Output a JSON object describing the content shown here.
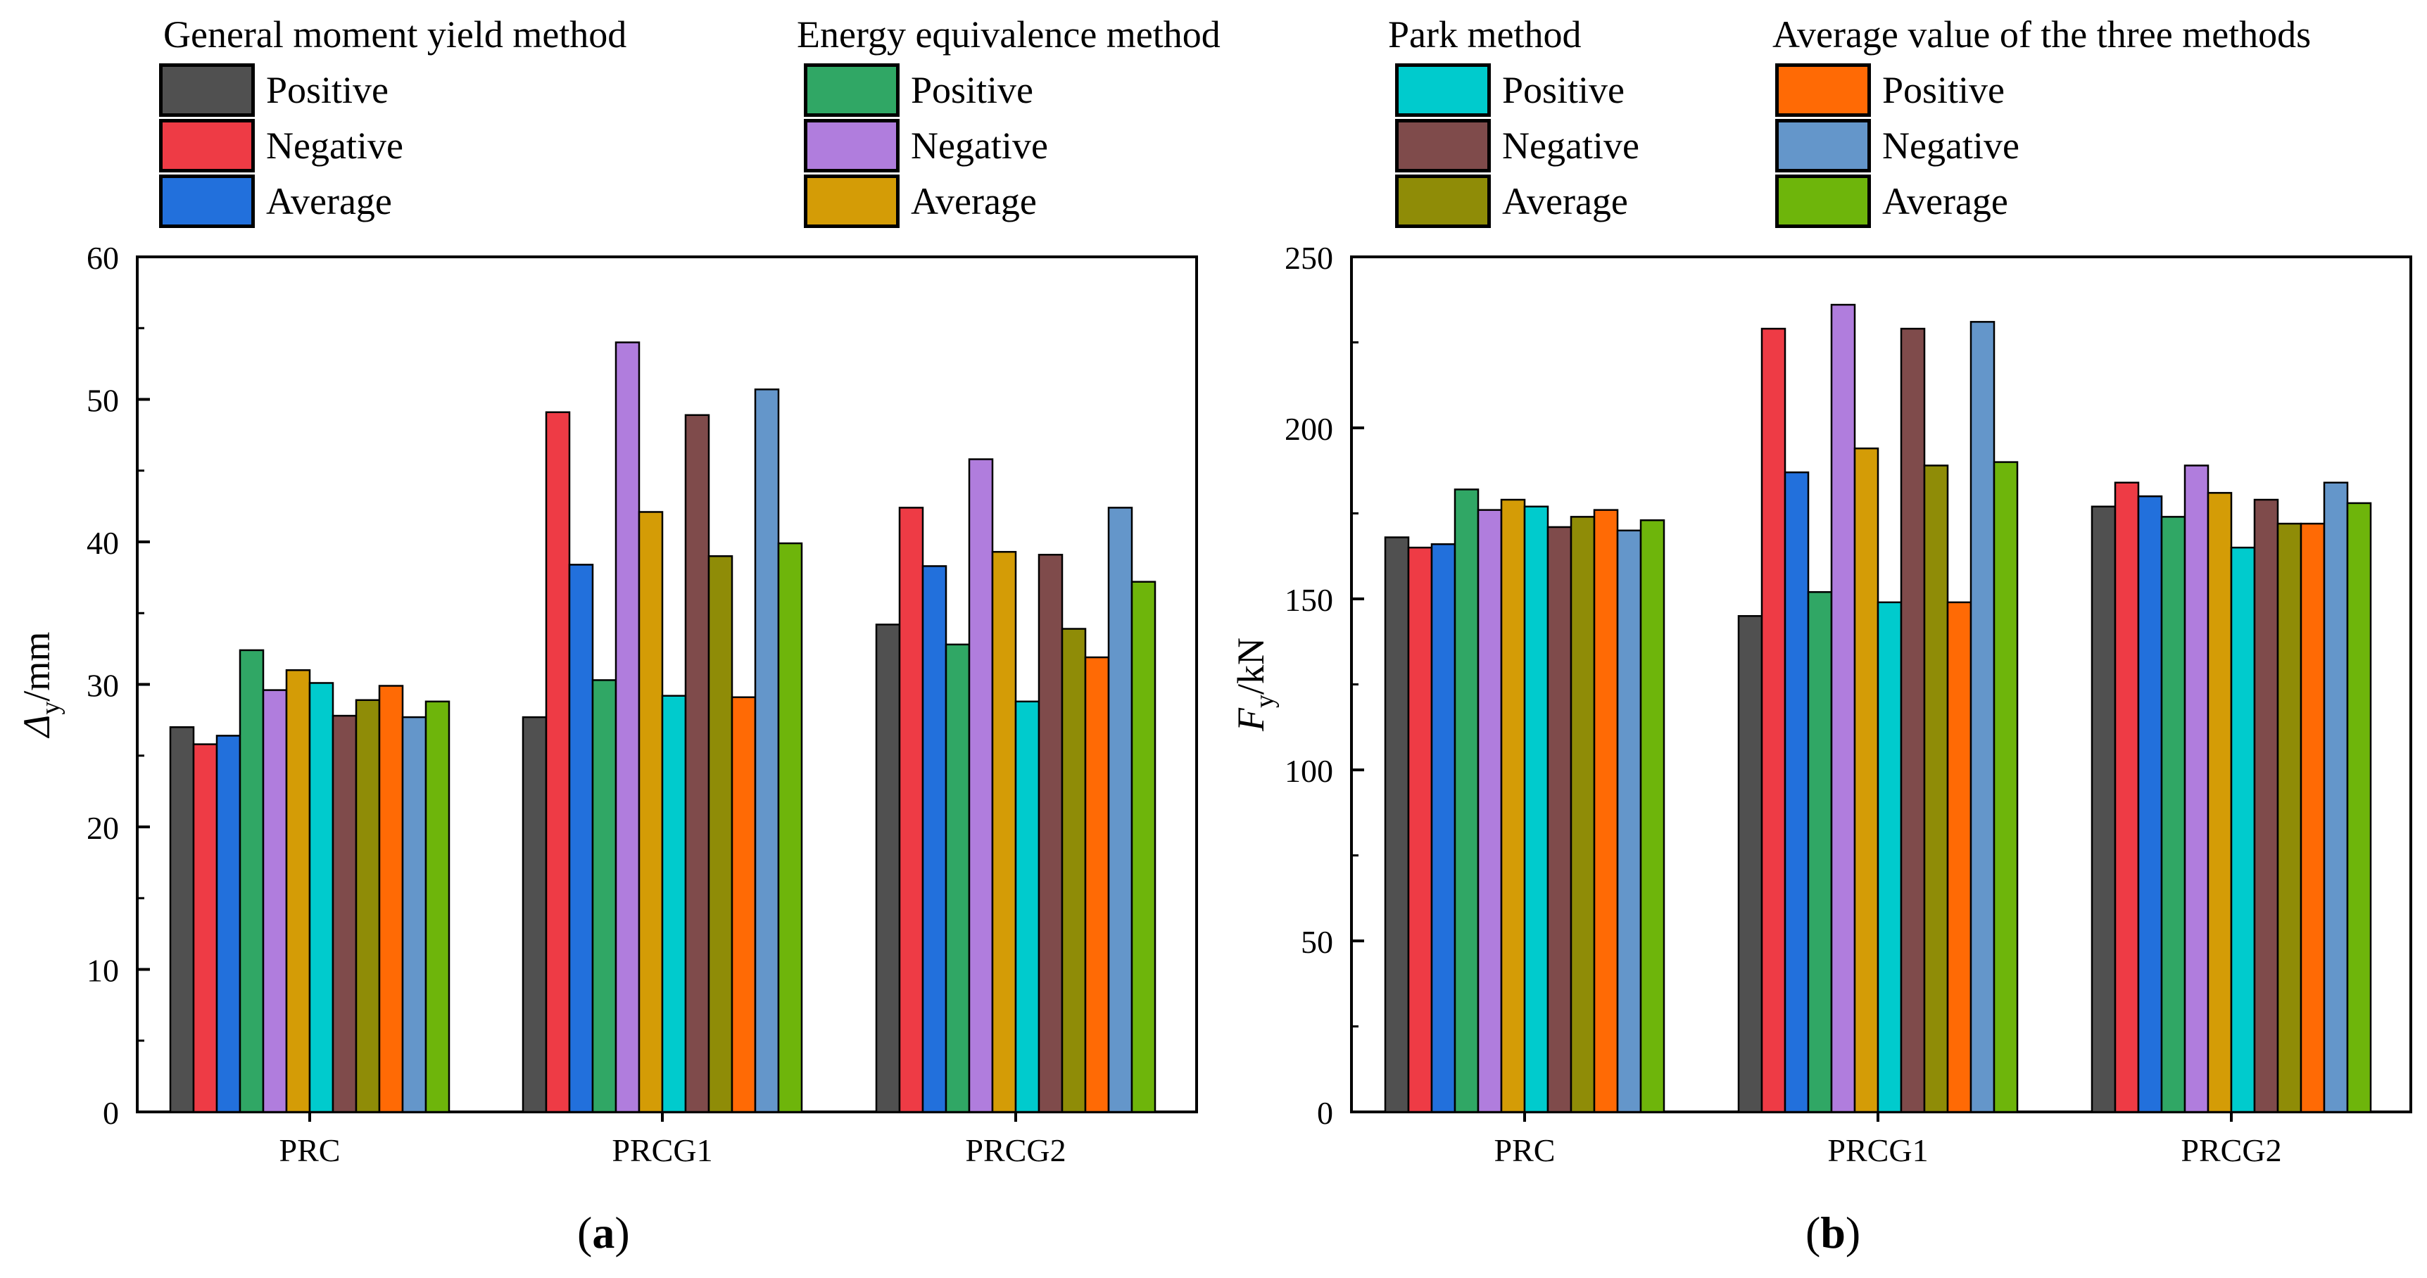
{
  "legend": {
    "groups": [
      {
        "title": "General moment yield method",
        "items": [
          {
            "label": "Positive",
            "color": "#505050"
          },
          {
            "label": "Negative",
            "color": "#ee3b45"
          },
          {
            "label": "Average",
            "color": "#2270dc"
          }
        ]
      },
      {
        "title": "Energy equivalence method",
        "items": [
          {
            "label": "Positive",
            "color": "#30a765"
          },
          {
            "label": "Negative",
            "color": "#b07ddd"
          },
          {
            "label": "Average",
            "color": "#d49c06"
          }
        ]
      },
      {
        "title": "Park method",
        "items": [
          {
            "label": "Positive",
            "color": "#00cbcd"
          },
          {
            "label": "Negative",
            "color": "#7f4b4b"
          },
          {
            "label": "Average",
            "color": "#8f8c07"
          }
        ]
      },
      {
        "title": "Average value of the three methods",
        "items": [
          {
            "label": "Positive",
            "color": "#ff6a05"
          },
          {
            "label": "Negative",
            "color": "#6496ca"
          },
          {
            "label": "Average",
            "color": "#6eb50b"
          }
        ]
      }
    ]
  },
  "panels": {
    "a": "a",
    "b": "b"
  },
  "chart_data": [
    {
      "type": "bar",
      "title": "",
      "panel": "a",
      "xlabel": "",
      "ylabel_symbol": "Δ",
      "ylabel_sub": "y",
      "ylabel_unit": "/mm",
      "ylim": [
        0,
        60
      ],
      "yticks": [
        0,
        10,
        20,
        30,
        40,
        50,
        60
      ],
      "categories": [
        "PRC",
        "PRCG1",
        "PRCG2"
      ],
      "series": [
        {
          "name": "General moment yield method - Positive",
          "values": [
            27.0,
            27.7,
            34.2
          ]
        },
        {
          "name": "General moment yield method - Negative",
          "values": [
            25.8,
            49.1,
            42.4
          ]
        },
        {
          "name": "General moment yield method - Average",
          "values": [
            26.4,
            38.4,
            38.3
          ]
        },
        {
          "name": "Energy equivalence method - Positive",
          "values": [
            32.4,
            30.3,
            32.8
          ]
        },
        {
          "name": "Energy equivalence method - Negative",
          "values": [
            29.6,
            54.0,
            45.8
          ]
        },
        {
          "name": "Energy equivalence method - Average",
          "values": [
            31.0,
            42.1,
            39.3
          ]
        },
        {
          "name": "Park method - Positive",
          "values": [
            30.1,
            29.2,
            28.8
          ]
        },
        {
          "name": "Park method - Negative",
          "values": [
            27.8,
            48.9,
            39.1
          ]
        },
        {
          "name": "Park method - Average",
          "values": [
            28.9,
            39.0,
            33.9
          ]
        },
        {
          "name": "Average value of the three methods - Positive",
          "values": [
            29.9,
            29.1,
            31.9
          ]
        },
        {
          "name": "Average value of the three methods - Negative",
          "values": [
            27.7,
            50.7,
            42.4
          ]
        },
        {
          "name": "Average value of the three methods - Average",
          "values": [
            28.8,
            39.9,
            37.2
          ]
        }
      ]
    },
    {
      "type": "bar",
      "title": "",
      "panel": "b",
      "xlabel": "",
      "ylabel_symbol": "F",
      "ylabel_sub": "y",
      "ylabel_unit": "/kN",
      "ylim": [
        0,
        250
      ],
      "yticks": [
        0,
        50,
        100,
        150,
        200,
        250
      ],
      "categories": [
        "PRC",
        "PRCG1",
        "PRCG2"
      ],
      "series": [
        {
          "name": "General moment yield method - Positive",
          "values": [
            168,
            145,
            177
          ]
        },
        {
          "name": "General moment yield method - Negative",
          "values": [
            165,
            229,
            184
          ]
        },
        {
          "name": "General moment yield method - Average",
          "values": [
            166,
            187,
            180
          ]
        },
        {
          "name": "Energy equivalence method - Positive",
          "values": [
            182,
            152,
            174
          ]
        },
        {
          "name": "Energy equivalence method - Negative",
          "values": [
            176,
            236,
            189
          ]
        },
        {
          "name": "Energy equivalence method - Average",
          "values": [
            179,
            194,
            181
          ]
        },
        {
          "name": "Park method - Positive",
          "values": [
            177,
            149,
            165
          ]
        },
        {
          "name": "Park method - Negative",
          "values": [
            171,
            229,
            179
          ]
        },
        {
          "name": "Park method - Average",
          "values": [
            174,
            189,
            172
          ]
        },
        {
          "name": "Average value of the three methods - Positive",
          "values": [
            176,
            149,
            172
          ]
        },
        {
          "name": "Average value of the three methods - Negative",
          "values": [
            170,
            231,
            184
          ]
        },
        {
          "name": "Average value of the three methods - Average",
          "values": [
            173,
            190,
            178
          ]
        }
      ]
    }
  ]
}
